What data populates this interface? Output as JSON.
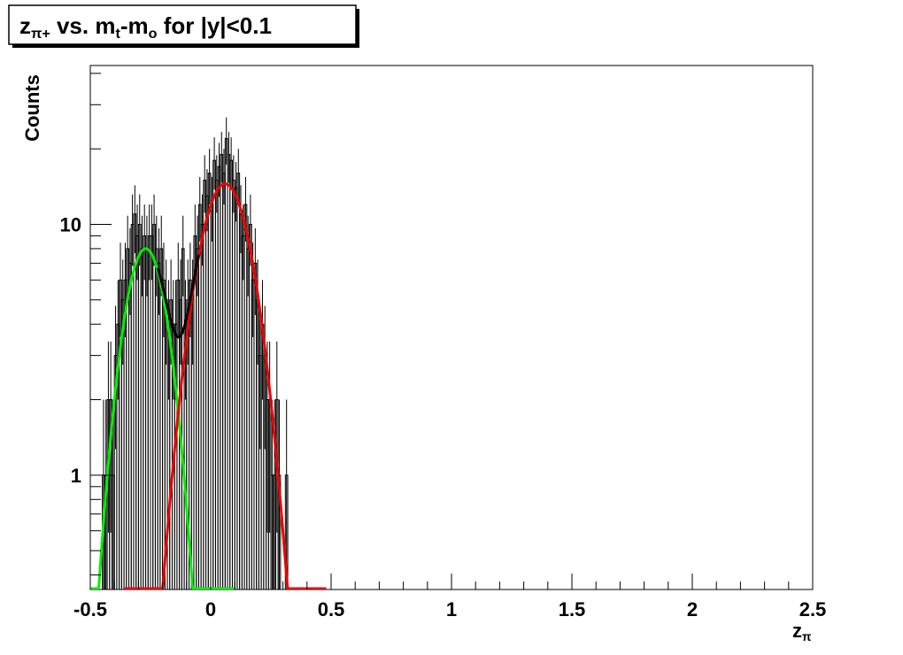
{
  "chart_data": {
    "type": "histogram",
    "title": [
      {
        "text": "z"
      },
      {
        "sub": "π+"
      },
      {
        "text": " vs. m"
      },
      {
        "sub": "t"
      },
      {
        "text": "-m"
      },
      {
        "sub": "o"
      },
      {
        "text": " for |y|<0.1"
      }
    ],
    "xlabel": [
      {
        "text": "z"
      },
      {
        "sub": "π"
      }
    ],
    "ylabel": "Counts",
    "log_y": true,
    "grid": false,
    "color": "#000000",
    "xlim": [
      -0.5,
      2.5
    ],
    "ylim": [
      0.35,
      43
    ],
    "xticks": [
      -0.5,
      0,
      0.5,
      1,
      1.5,
      2,
      2.5
    ],
    "xminorticks": [
      -0.4,
      -0.3,
      -0.2,
      -0.1,
      0.1,
      0.2,
      0.3,
      0.4,
      0.6,
      0.7,
      0.8,
      0.9,
      1.1,
      1.2,
      1.3,
      1.4,
      1.6,
      1.7,
      1.8,
      1.9,
      2.1,
      2.2,
      2.3,
      2.4
    ],
    "yticks": [
      1,
      10
    ],
    "yminorticks": [
      0.4,
      0.5,
      0.6,
      0.7,
      0.8,
      0.9,
      2,
      3,
      4,
      5,
      6,
      7,
      8,
      9,
      20,
      30,
      40
    ],
    "bins": [
      -0.45,
      -0.44,
      -0.43,
      -0.42,
      -0.41,
      -0.4,
      -0.39,
      -0.38,
      -0.37,
      -0.36,
      -0.35,
      -0.34,
      -0.33,
      -0.32,
      -0.31,
      -0.3,
      -0.29,
      -0.28,
      -0.27,
      -0.26,
      -0.25,
      -0.24,
      -0.23,
      -0.22,
      -0.21,
      -0.2,
      -0.19,
      -0.18,
      -0.17,
      -0.16,
      -0.15,
      -0.14,
      -0.13,
      -0.12,
      -0.11,
      -0.1,
      -0.09,
      -0.08,
      -0.07,
      -0.06,
      -0.05,
      -0.04,
      -0.03,
      -0.02,
      -0.01,
      0,
      0.01,
      0.02,
      0.03,
      0.04,
      0.05,
      0.06,
      0.07,
      0.08,
      0.09,
      0.1,
      0.11,
      0.12,
      0.13,
      0.14,
      0.15,
      0.16,
      0.17,
      0.18,
      0.19,
      0.2,
      0.21,
      0.22,
      0.23,
      0.24,
      0.25,
      0.26,
      0.27,
      0.28,
      0.29,
      0.3,
      0.31,
      0.32,
      0.33,
      0.34,
      0.35
    ],
    "values": [
      1,
      1,
      2,
      2,
      1,
      3,
      4,
      6,
      5,
      6,
      8,
      7,
      10,
      11,
      9,
      10,
      8,
      9,
      8,
      9,
      9,
      10,
      8,
      7,
      8,
      6,
      5,
      4,
      5,
      4,
      4,
      6,
      5,
      8,
      4,
      5,
      6,
      5,
      9,
      8,
      12,
      10,
      15,
      13,
      16,
      12,
      18,
      15,
      17,
      19,
      16,
      22,
      19,
      18,
      15,
      14,
      16,
      11,
      9,
      12,
      8,
      10,
      6,
      7,
      5,
      3,
      4,
      3,
      2,
      2,
      1,
      1,
      2,
      1,
      0,
      0,
      1,
      0,
      0,
      0
    ],
    "errors": [
      1,
      1,
      1.41,
      1.41,
      1,
      1.73,
      2,
      2.45,
      2.24,
      2.45,
      2.83,
      2.65,
      3.16,
      3.32,
      3,
      3.16,
      2.83,
      3,
      2.83,
      3,
      3,
      3.16,
      2.83,
      2.65,
      2.83,
      2.45,
      2.24,
      2,
      2.24,
      2,
      2,
      2.45,
      2.24,
      2.83,
      2,
      2.24,
      2.45,
      2.24,
      3,
      2.83,
      3.46,
      3.16,
      3.87,
      3.61,
      4,
      3.46,
      4.24,
      3.87,
      4.12,
      4.36,
      4,
      4.69,
      4.36,
      4.24,
      3.87,
      3.74,
      4,
      3.32,
      3,
      3.46,
      2.83,
      3.16,
      2.45,
      2.65,
      2.24,
      1.73,
      2,
      1.73,
      1.41,
      1.41,
      1,
      1,
      1.41,
      1,
      0,
      0,
      1,
      0,
      0,
      0
    ],
    "fits": [
      {
        "color": "#00ee00",
        "amplitude": 8,
        "mean": -0.27,
        "sigma": 0.078,
        "range": [
          -0.5,
          0.1
        ]
      },
      {
        "color": "#ee0000",
        "amplitude": 14.5,
        "mean": 0.06,
        "sigma": 0.095,
        "range": [
          -0.36,
          0.48
        ]
      }
    ],
    "total_fit": {
      "color": "#000000",
      "range": [
        -0.22,
        -0.05
      ]
    }
  }
}
